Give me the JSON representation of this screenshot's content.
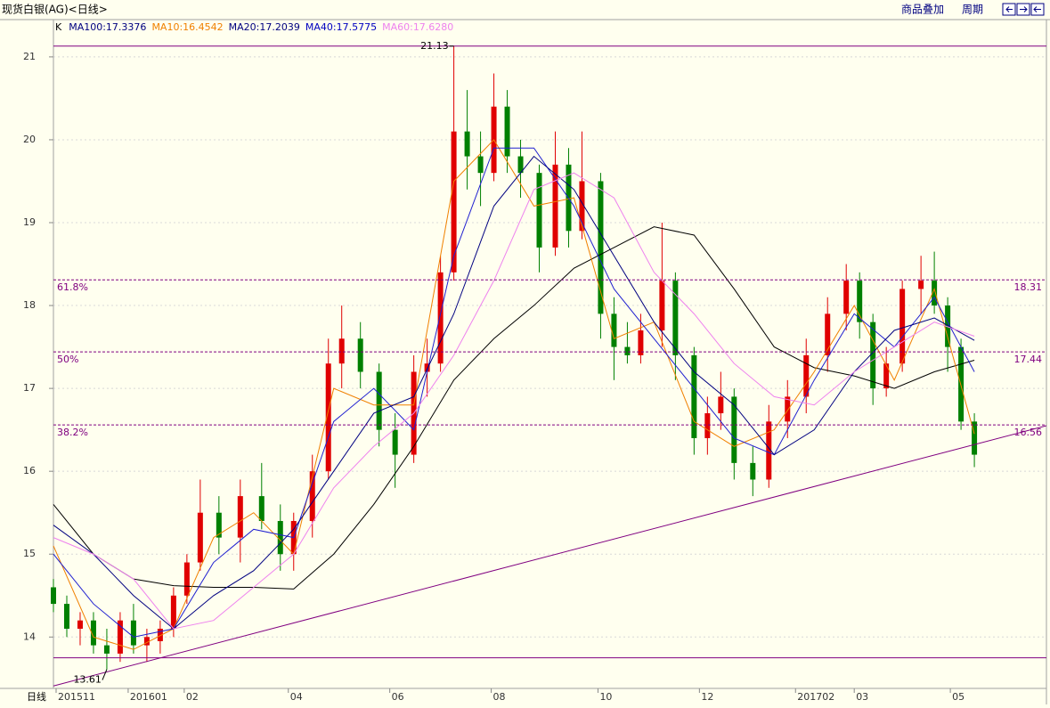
{
  "header": {
    "title": "现货白银(AG)<日线>",
    "menu": [
      "商品叠加",
      "周期"
    ]
  },
  "footer": {
    "label": "日线"
  },
  "chart_data": {
    "type": "candlestick",
    "indicator": "K",
    "xlim": [
      0,
      372
    ],
    "ylim": [
      13.38,
      21.45
    ],
    "yticks": [
      14,
      15,
      16,
      17,
      18,
      19,
      20,
      21
    ],
    "grid": true,
    "xticks": [
      {
        "value": 1,
        "label": "201511"
      },
      {
        "value": 28,
        "label": "201601"
      },
      {
        "value": 49,
        "label": "02"
      },
      {
        "value": 88,
        "label": "04"
      },
      {
        "value": 126,
        "label": "06"
      },
      {
        "value": 164,
        "label": "08"
      },
      {
        "value": 204,
        "label": "10"
      },
      {
        "value": 242,
        "label": "12"
      },
      {
        "value": 278,
        "label": "201702"
      },
      {
        "value": 300,
        "label": "03"
      },
      {
        "value": 336,
        "label": "05"
      }
    ],
    "candles": {
      "x": [
        0,
        5,
        10,
        15,
        20,
        25,
        30,
        35,
        40,
        45,
        50,
        55,
        62,
        70,
        78,
        85,
        90,
        97,
        103,
        108,
        115,
        122,
        128,
        135,
        140,
        145,
        150,
        155,
        160,
        165,
        170,
        175,
        182,
        188,
        193,
        198,
        205,
        210,
        215,
        220,
        228,
        233,
        240,
        245,
        250,
        255,
        262,
        268,
        275,
        282,
        290,
        297,
        302,
        307,
        312,
        318,
        325,
        330,
        335,
        340,
        345
      ],
      "open": [
        14.6,
        14.4,
        14.1,
        14.2,
        13.9,
        13.8,
        14.2,
        13.9,
        13.95,
        14.1,
        14.5,
        14.9,
        15.5,
        15.2,
        15.7,
        15.4,
        15.0,
        15.4,
        16.0,
        17.3,
        17.6,
        17.2,
        16.5,
        16.2,
        17.2,
        17.3,
        18.4,
        20.1,
        19.8,
        19.6,
        20.4,
        19.8,
        19.6,
        18.7,
        19.7,
        18.9,
        19.5,
        17.9,
        17.5,
        17.4,
        17.7,
        18.3,
        17.4,
        16.4,
        16.7,
        16.9,
        16.1,
        15.9,
        16.6,
        16.9,
        17.4,
        17.9,
        18.3,
        17.8,
        17.0,
        17.3,
        18.2,
        18.3,
        18.0,
        17.5,
        16.6
      ],
      "high": [
        14.7,
        14.5,
        14.3,
        14.3,
        14.1,
        14.3,
        14.4,
        14.1,
        14.2,
        14.6,
        15.0,
        15.9,
        15.7,
        15.9,
        16.1,
        15.6,
        15.5,
        16.2,
        17.6,
        18.0,
        17.8,
        17.3,
        16.7,
        17.4,
        17.6,
        18.6,
        21.13,
        20.6,
        20.1,
        20.8,
        20.6,
        20.0,
        19.7,
        20.1,
        19.9,
        20.1,
        19.6,
        18.1,
        17.8,
        17.9,
        19.0,
        18.4,
        17.5,
        16.9,
        17.2,
        17.0,
        16.3,
        16.8,
        17.1,
        17.6,
        18.1,
        18.5,
        18.4,
        17.9,
        17.5,
        18.3,
        18.6,
        18.65,
        18.1,
        17.6,
        16.7
      ],
      "low": [
        14.3,
        14.0,
        13.9,
        13.8,
        13.61,
        13.7,
        13.8,
        13.7,
        13.8,
        14.0,
        14.4,
        14.8,
        15.0,
        14.9,
        15.3,
        14.8,
        14.8,
        15.2,
        15.9,
        17.0,
        17.0,
        16.3,
        15.8,
        16.1,
        16.9,
        17.2,
        18.3,
        19.4,
        19.2,
        19.5,
        19.6,
        19.3,
        18.4,
        18.6,
        18.7,
        18.8,
        17.6,
        17.1,
        17.3,
        17.3,
        17.5,
        17.1,
        16.2,
        16.2,
        16.5,
        15.9,
        15.7,
        15.8,
        16.4,
        16.7,
        17.2,
        17.7,
        17.6,
        16.8,
        16.9,
        17.2,
        17.9,
        17.9,
        17.2,
        16.5,
        16.05
      ],
      "close": [
        14.4,
        14.1,
        14.2,
        13.9,
        13.8,
        14.2,
        13.9,
        14.0,
        14.1,
        14.5,
        14.9,
        15.5,
        15.2,
        15.7,
        15.4,
        15.0,
        15.4,
        16.0,
        17.3,
        17.6,
        17.2,
        16.5,
        16.2,
        17.2,
        17.3,
        18.4,
        20.1,
        19.8,
        19.6,
        20.4,
        19.8,
        19.6,
        18.7,
        19.7,
        18.9,
        19.5,
        17.9,
        17.5,
        17.4,
        17.7,
        18.3,
        17.4,
        16.4,
        16.7,
        16.9,
        16.1,
        15.9,
        16.6,
        16.9,
        17.4,
        17.9,
        18.3,
        17.8,
        17.0,
        17.3,
        18.2,
        18.3,
        18.0,
        17.5,
        16.6,
        16.2
      ]
    },
    "ma_x": [
      0,
      15,
      30,
      45,
      60,
      75,
      90,
      105,
      120,
      135,
      150,
      165,
      180,
      195,
      210,
      225,
      240,
      255,
      270,
      285,
      300,
      315,
      330,
      345
    ],
    "series": [
      {
        "name": "MA100:17.3376",
        "color": "#000000",
        "label_color": "#000080",
        "values": [
          15.6,
          15.0,
          14.7,
          14.62,
          14.6,
          14.6,
          14.58,
          15.0,
          15.6,
          16.3,
          17.1,
          17.6,
          18.0,
          18.45,
          18.7,
          18.95,
          18.85,
          18.2,
          17.5,
          17.25,
          17.15,
          17.0,
          17.2,
          17.34
        ]
      },
      {
        "name": "MA10:16.4542",
        "color": "#f08000",
        "label_color": "#f08000",
        "values": [
          15.1,
          14.0,
          13.85,
          14.1,
          15.2,
          15.5,
          15.0,
          17.0,
          16.8,
          16.8,
          19.5,
          20.0,
          19.2,
          19.3,
          17.6,
          17.8,
          16.6,
          16.3,
          16.5,
          17.2,
          18.0,
          17.1,
          18.2,
          16.45
        ]
      },
      {
        "name": "MA20:17.2039",
        "color": "#2020d0",
        "label_color": "#000080",
        "values": [
          15.0,
          14.4,
          14.0,
          14.1,
          14.9,
          15.3,
          15.2,
          16.6,
          17.0,
          16.5,
          18.6,
          19.9,
          19.9,
          19.2,
          18.2,
          17.6,
          17.0,
          16.4,
          16.2,
          17.1,
          17.9,
          17.5,
          18.1,
          17.2
        ]
      },
      {
        "name": "MA40:17.5775",
        "color": "#000080",
        "label_color": "#0000c0",
        "values": [
          15.35,
          15.0,
          14.5,
          14.1,
          14.5,
          14.8,
          15.3,
          16.0,
          16.7,
          16.9,
          17.9,
          19.2,
          19.8,
          19.4,
          18.6,
          17.8,
          17.2,
          16.8,
          16.2,
          16.5,
          17.2,
          17.7,
          17.85,
          17.58
        ]
      },
      {
        "name": "MA60:17.6280",
        "color": "#ee82ee",
        "label_color": "#ee82ee",
        "values": [
          15.2,
          15.0,
          14.7,
          14.1,
          14.2,
          14.6,
          15.0,
          15.8,
          16.3,
          16.7,
          17.4,
          18.3,
          19.4,
          19.6,
          19.3,
          18.4,
          17.9,
          17.3,
          16.9,
          16.8,
          17.2,
          17.5,
          17.8,
          17.63
        ]
      }
    ],
    "hlines": [
      21.13,
      13.75
    ],
    "annotations": [
      {
        "text": "21.13",
        "x": 150,
        "y": 21.13
      },
      {
        "text": "13.61",
        "x": 20,
        "y": 13.61
      }
    ],
    "fib_levels": [
      {
        "label": "61.8%",
        "value": 18.31
      },
      {
        "label": "50%",
        "value": 17.44
      },
      {
        "label": "38.2%",
        "value": 16.56
      }
    ],
    "trendline": {
      "x": [
        0,
        372
      ],
      "y": [
        13.41,
        16.55
      ]
    },
    "up_color": "#e00000",
    "down_color": "#008000",
    "level_color": "#800080"
  }
}
